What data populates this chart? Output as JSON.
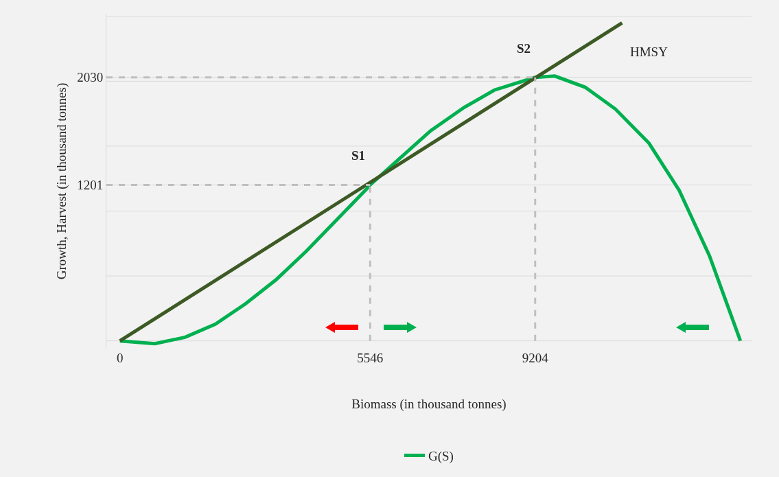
{
  "chart_data": {
    "type": "line",
    "xlabel": "Biomass (in thousand tonnes)",
    "ylabel": "Growth, Harvest (in thousand tonnes)",
    "xlim": [
      -300,
      14000
    ],
    "ylim": [
      -60,
      2520
    ],
    "xticks": [
      0,
      5546,
      9204
    ],
    "yticks": [
      {
        "value": 0,
        "label": null
      },
      {
        "value": 500,
        "label": null
      },
      {
        "value": 1000,
        "label": null
      },
      1201,
      {
        "value": 1500,
        "label": null
      },
      {
        "value": 2000,
        "label": null
      },
      2030,
      {
        "value": 2500,
        "label": null
      }
    ],
    "grid": "y",
    "legend": "bottom",
    "line_style": "solid",
    "marker": "none",
    "series": [
      {
        "name": "G(S)",
        "color": "#00b050",
        "x": [
          0,
          775,
          1445,
          2116,
          2786,
          3457,
          4127,
          4798,
          5468,
          5546,
          6884,
          7629,
          8299,
          8970,
          9204,
          9640,
          10311,
          10981,
          11726,
          12397,
          13067,
          13753
        ],
        "values": [
          0,
          -22,
          28,
          129,
          286,
          470,
          689,
          930,
          1170,
          1201,
          1618,
          1798,
          1932,
          2005,
          2030,
          2040,
          1954,
          1786,
          1523,
          1159,
          655,
          0
        ]
      },
      {
        "color": "#3d5a25",
        "x": [
          0,
          11130
        ],
        "values": [
          0,
          2449
        ]
      }
    ],
    "ref_lines": [
      {
        "axis": "y",
        "value": 1201,
        "color": "#bfbfbf",
        "line_style": "dashed"
      },
      {
        "axis": "y",
        "value": 2030,
        "color": "#bfbfbf",
        "line_style": "dashed"
      },
      {
        "axis": "x",
        "value": 5546,
        "color": "#bfbfbf",
        "line_style": "dashed"
      },
      {
        "axis": "x",
        "value": 9204,
        "color": "#bfbfbf",
        "line_style": "dashed"
      }
    ],
    "annotations": [
      {
        "text": "S1",
        "x": 5546,
        "y": 1201
      },
      {
        "text": "S2",
        "x": 9204,
        "y": 2030
      },
      "HMSY"
    ]
  }
}
